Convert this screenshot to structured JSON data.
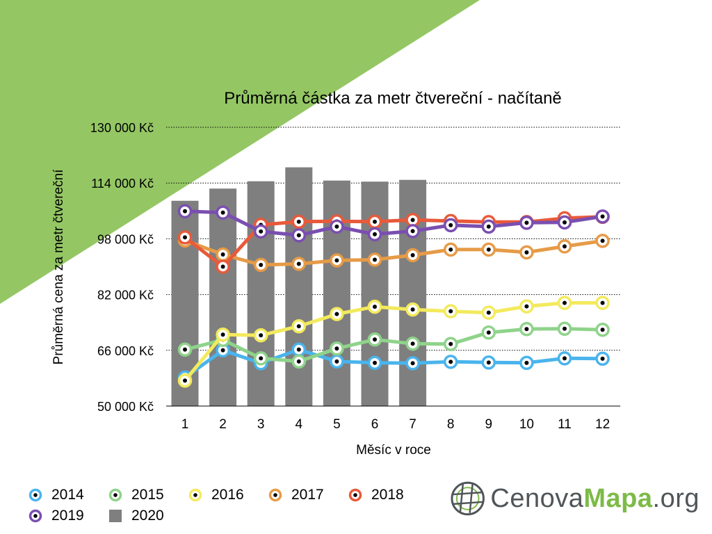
{
  "chart_data": {
    "type": "line",
    "title": "Průměrná částka za metr čtvereční - načítaně",
    "xlabel": "Měsíc v roce",
    "ylabel": "Průměrná cena za metr čtvereční",
    "categories": [
      "1",
      "2",
      "3",
      "4",
      "5",
      "6",
      "7",
      "8",
      "9",
      "10",
      "11",
      "12"
    ],
    "ylim": [
      50000,
      130000
    ],
    "yticks": [
      50000,
      66000,
      82000,
      98000,
      114000,
      130000
    ],
    "ytick_labels": [
      "50 000 Kč",
      "66 000 Kč",
      "82 000 Kč",
      "98 000 Kč",
      "114 000 Kč",
      "130 000 Kč"
    ],
    "grid": "horizontal dotted",
    "legend_position": "bottom-left",
    "bar_series": {
      "name": "2020",
      "color": "#7f7f7f",
      "values": [
        108900,
        112400,
        114500,
        118500,
        114700,
        114400,
        114900
      ]
    },
    "series": [
      {
        "name": "2014",
        "color": "#4ab4ec",
        "values": [
          58200,
          66000,
          62300,
          66200,
          62800,
          62400,
          62300,
          62700,
          62500,
          62400,
          63700,
          63600
        ]
      },
      {
        "name": "2015",
        "color": "#8fd38b",
        "values": [
          66200,
          69000,
          63700,
          62800,
          66500,
          69100,
          67900,
          67800,
          71100,
          72100,
          72200,
          71900
        ]
      },
      {
        "name": "2016",
        "color": "#f3ea5d",
        "values": [
          57300,
          70500,
          70300,
          72900,
          76400,
          78500,
          77700,
          77200,
          76800,
          78600,
          79600,
          79600
        ]
      },
      {
        "name": "2017",
        "color": "#e69b47",
        "values": [
          97500,
          93500,
          90500,
          90800,
          91800,
          92000,
          93300,
          94900,
          94900,
          94100,
          95800,
          97400
        ]
      },
      {
        "name": "2018",
        "color": "#e85a3a",
        "values": [
          98400,
          90000,
          102000,
          102900,
          103000,
          102900,
          103400,
          103100,
          102800,
          102800,
          103900,
          104300
        ]
      },
      {
        "name": "2019",
        "color": "#7a4fb0",
        "values": [
          105900,
          105500,
          100100,
          99000,
          101500,
          99300,
          100200,
          101900,
          101500,
          102600,
          102700,
          104400
        ]
      }
    ]
  },
  "legend": {
    "items": [
      {
        "label": "2014",
        "color": "#4ab4ec",
        "kind": "line"
      },
      {
        "label": "2015",
        "color": "#8fd38b",
        "kind": "line"
      },
      {
        "label": "2016",
        "color": "#f3ea5d",
        "kind": "line"
      },
      {
        "label": "2017",
        "color": "#e69b47",
        "kind": "line"
      },
      {
        "label": "2018",
        "color": "#e85a3a",
        "kind": "line"
      },
      {
        "label": "2019",
        "color": "#7a4fb0",
        "kind": "line"
      },
      {
        "label": "2020",
        "color": "#7f7f7f",
        "kind": "bar"
      }
    ]
  },
  "logo": {
    "part1": "Cenova",
    "part2": "Mapa",
    "part3": ".org",
    "icon": "globe-grid-icon"
  },
  "colors": {
    "accent": "#94c764",
    "logo_green": "#7cbb47",
    "logo_gray": "#505558"
  }
}
